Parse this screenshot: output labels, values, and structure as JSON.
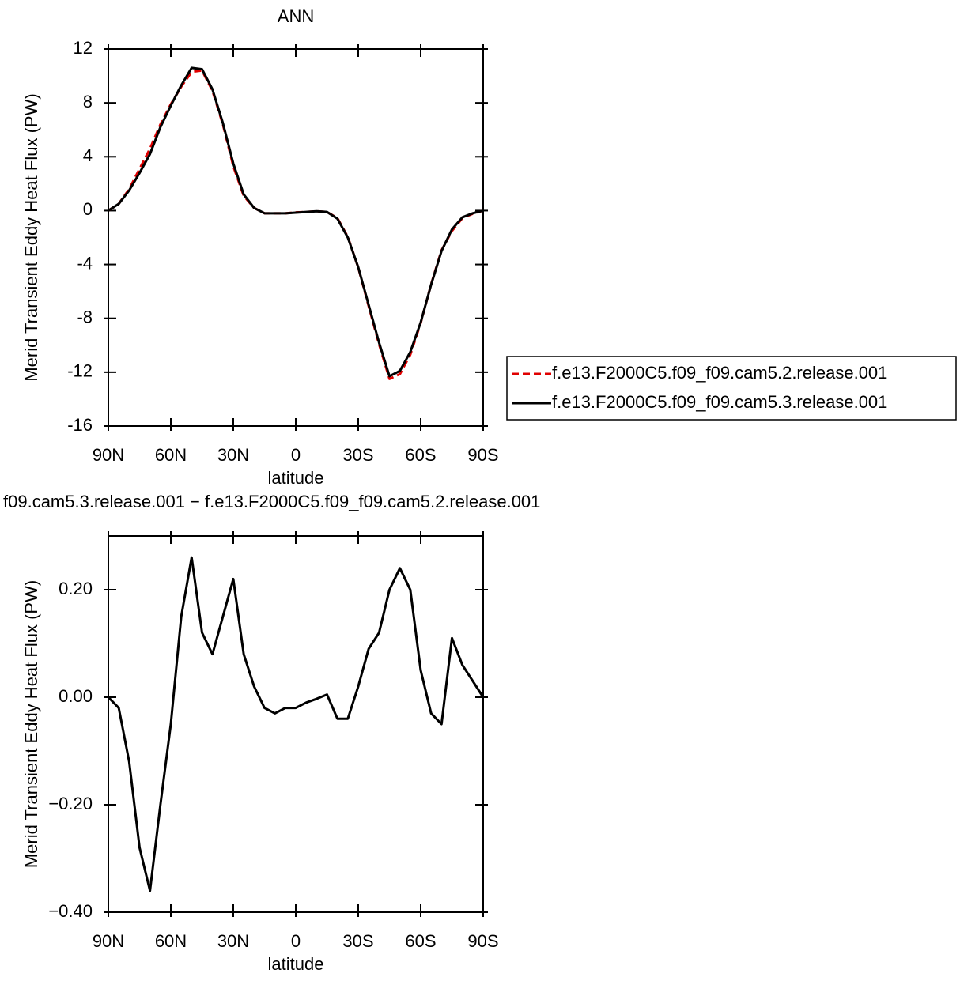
{
  "chart_data": [
    {
      "type": "line",
      "title": "ANN",
      "xlabel": "latitude",
      "ylabel": "Merid Transient Eddy Heat Flux (PW)",
      "x": [
        90,
        85,
        80,
        75,
        70,
        65,
        60,
        55,
        50,
        45,
        40,
        35,
        30,
        25,
        20,
        15,
        10,
        5,
        0,
        -5,
        -10,
        -15,
        -20,
        -25,
        -30,
        -35,
        -40,
        -45,
        -50,
        -55,
        -60,
        -65,
        -70,
        -75,
        -80,
        -85,
        -90
      ],
      "xlim": [
        90,
        -90
      ],
      "xticks": [
        {
          "value": 90,
          "label": "90N"
        },
        {
          "value": 60,
          "label": "60N"
        },
        {
          "value": 30,
          "label": "30N"
        },
        0,
        {
          "value": -30,
          "label": "30S"
        },
        {
          "value": -60,
          "label": "60S"
        },
        {
          "value": -90,
          "label": "90S"
        }
      ],
      "ylim": [
        -16,
        12
      ],
      "yticks": [
        -16,
        -12,
        -8,
        -4,
        0,
        4,
        8,
        12
      ],
      "series": [
        {
          "name": "f.e13.F2000C5.f09_f09.cam5.2.release.001",
          "color": "#e00000",
          "dash": true,
          "values": [
            0,
            0.5,
            1.6,
            3.1,
            4.6,
            6.4,
            7.9,
            9.2,
            10.3,
            10.4,
            8.9,
            6.4,
            3.3,
            1.1,
            0.2,
            -0.2,
            -0.2,
            -0.2,
            -0.13,
            -0.1,
            -0.05,
            -0.1,
            -0.56,
            -1.96,
            -4.22,
            -7.09,
            -9.92,
            -12.5,
            -12.14,
            -10.7,
            -8.35,
            -5.47,
            -2.95,
            -1.51,
            -0.56,
            -0.23,
            0
          ]
        },
        {
          "name": "f.e13.F2000C5.f09_f09.cam5.3.release.001",
          "color": "#000000",
          "dash": false,
          "values": [
            0,
            0.5,
            1.5,
            2.8,
            4.2,
            6.2,
            7.8,
            9.3,
            10.6,
            10.5,
            9.0,
            6.5,
            3.5,
            1.2,
            0.2,
            -0.2,
            -0.2,
            -0.2,
            -0.15,
            -0.1,
            -0.05,
            -0.1,
            -0.6,
            -2.0,
            -4.2,
            -7.0,
            -9.8,
            -12.3,
            -11.9,
            -10.5,
            -8.3,
            -5.5,
            -3.0,
            -1.4,
            -0.5,
            -0.2,
            0
          ]
        }
      ]
    },
    {
      "type": "line",
      "title": "f09.cam5.3.release.001 − f.e13.F2000C5.f09_f09.cam5.2.release.001",
      "xlabel": "latitude",
      "ylabel": "Merid Transient Eddy Heat Flux (PW)",
      "x": [
        90,
        85,
        80,
        75,
        70,
        65,
        60,
        55,
        50,
        45,
        40,
        35,
        30,
        25,
        20,
        15,
        10,
        5,
        0,
        -5,
        -10,
        -15,
        -20,
        -25,
        -30,
        -35,
        -40,
        -45,
        -50,
        -55,
        -60,
        -65,
        -70,
        -75,
        -80,
        -85,
        -90
      ],
      "xlim": [
        90,
        -90
      ],
      "xticks": [
        {
          "value": 90,
          "label": "90N"
        },
        {
          "value": 60,
          "label": "60N"
        },
        {
          "value": 30,
          "label": "30N"
        },
        0,
        {
          "value": -30,
          "label": "30S"
        },
        {
          "value": -60,
          "label": "60S"
        },
        {
          "value": -90,
          "label": "90S"
        }
      ],
      "ylim": [
        -0.4,
        0.3
      ],
      "yticks": [
        {
          "value": -0.4,
          "label": "−0.40"
        },
        {
          "value": -0.2,
          "label": "−0.20"
        },
        {
          "value": 0,
          "label": "0.00"
        },
        {
          "value": 0.2,
          "label": "0.20"
        }
      ],
      "series": [
        {
          "color": "#000000",
          "dash": false,
          "values": [
            0,
            -0.02,
            -0.12,
            -0.28,
            -0.36,
            -0.2,
            -0.05,
            0.15,
            0.26,
            0.12,
            0.08,
            0.15,
            0.22,
            0.08,
            0.02,
            -0.02,
            -0.03,
            -0.02,
            -0.02,
            -0.01,
            -0.003,
            0.005,
            -0.04,
            -0.04,
            0.02,
            0.09,
            0.12,
            0.2,
            0.24,
            0.2,
            0.05,
            -0.03,
            -0.05,
            0.11,
            0.06,
            0.03,
            0
          ]
        }
      ]
    }
  ]
}
